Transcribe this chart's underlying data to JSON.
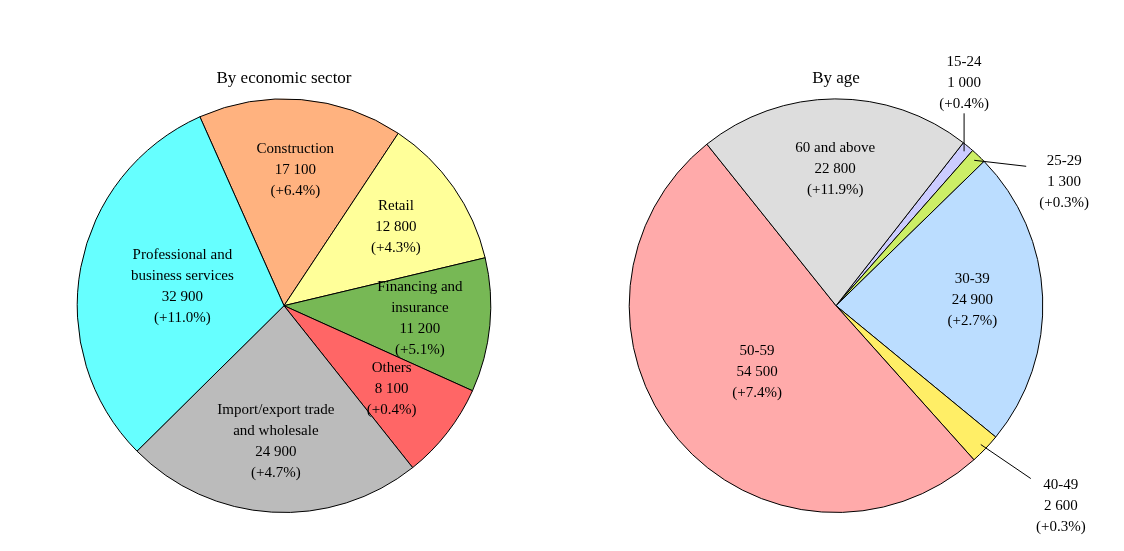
{
  "chart_data": [
    {
      "type": "pie",
      "title": "By economic sector",
      "categories": [
        "Construction",
        "Retail",
        "Financing and\ninsurance",
        "Others",
        "Import/export trade\nand wholesale",
        "Professional and\nbusiness services"
      ],
      "values": [
        17100,
        12800,
        11200,
        8100,
        24900,
        32900
      ],
      "colors": [
        "#ffb27f",
        "#ffff99",
        "#77b855",
        "#ff6666",
        "#bbbbbb",
        "#66ffff"
      ],
      "value_labels": [
        "17 100\n(+6.4%)",
        "12 800\n(+4.3%)",
        "11 200\n(+5.1%)",
        "8 100\n(+0.4%)",
        "24 900\n(+4.7%)",
        "32 900\n(+11.0%)"
      ],
      "legend": false
    },
    {
      "type": "pie",
      "title": "By age",
      "categories": [
        "15-24",
        "25-29",
        "30-39",
        "40-49",
        "50-59",
        "60 and above"
      ],
      "values": [
        1000,
        1300,
        24900,
        2600,
        54500,
        22800
      ],
      "colors": [
        "#ccccff",
        "#ccee66",
        "#bbddff",
        "#ffee66",
        "#ffaaaa",
        "#dddddd"
      ],
      "value_labels": [
        "1 000\n(+0.4%)",
        "1 300\n(+0.3%)",
        "24 900\n(+2.7%)",
        "2 600\n(+0.3%)",
        "54 500\n(+7.4%)",
        "22 800\n(+11.9%)"
      ],
      "legend": false
    }
  ]
}
